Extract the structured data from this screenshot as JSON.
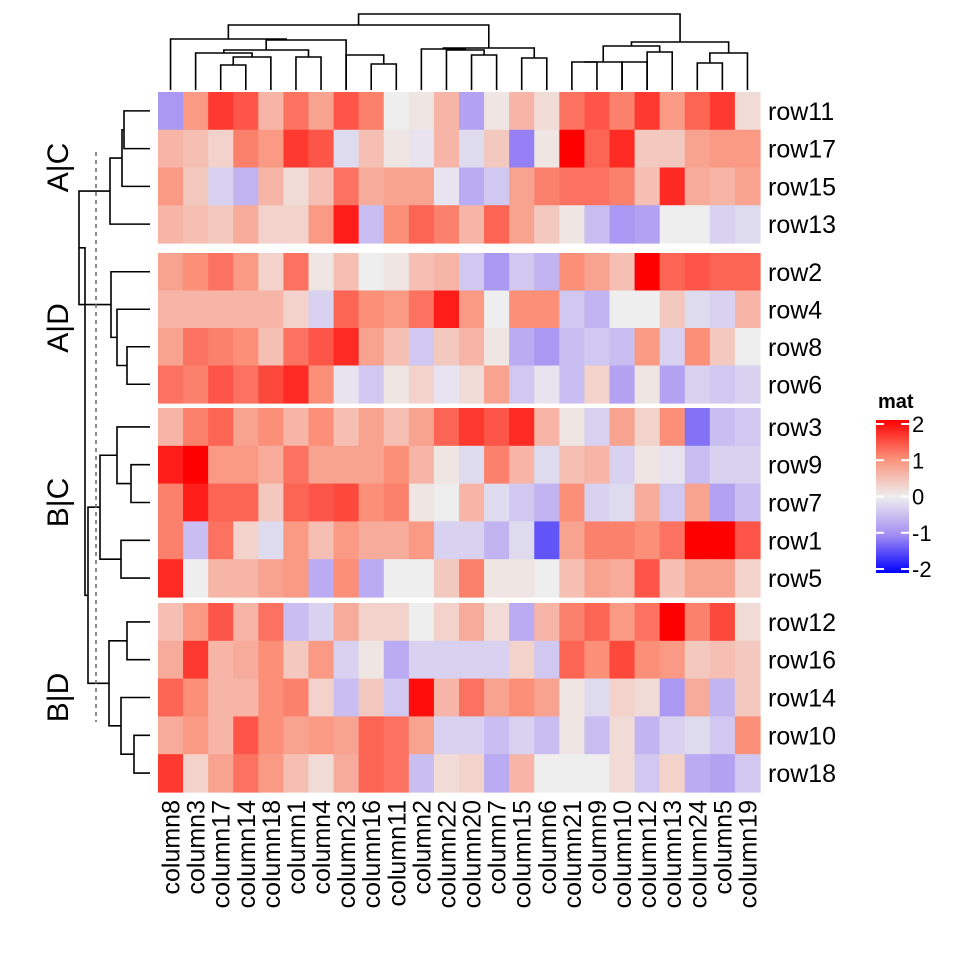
{
  "chart_data": {
    "type": "heatmap",
    "title": "",
    "legend": {
      "title": "mat",
      "ticks": [
        2,
        1,
        0,
        -1,
        -2
      ],
      "range": [
        -2,
        2
      ],
      "colors": {
        "low": "#0000ff",
        "mid": "#eeeeee",
        "high": "#ff0000"
      },
      "placement": "right"
    },
    "columns": [
      "column8",
      "column3",
      "column17",
      "column14",
      "column18",
      "column1",
      "column4",
      "column23",
      "column16",
      "column11",
      "column2",
      "column22",
      "column20",
      "column7",
      "column15",
      "column6",
      "column21",
      "column9",
      "column10",
      "column12",
      "column13",
      "column24",
      "column5",
      "column19"
    ],
    "slices": [
      {
        "label": "A|C",
        "rows": [
          "row11",
          "row17",
          "row15",
          "row13"
        ]
      },
      {
        "label": "A|D",
        "rows": [
          "row2",
          "row4",
          "row8",
          "row6"
        ]
      },
      {
        "label": "B|C",
        "rows": [
          "row3",
          "row9",
          "row7",
          "row1",
          "row5"
        ]
      },
      {
        "label": "B|D",
        "rows": [
          "row12",
          "row16",
          "row14",
          "row10",
          "row18"
        ]
      }
    ],
    "values": {
      "row11": [
        -0.9,
        0.9,
        1.6,
        1.4,
        0.6,
        1.2,
        0.8,
        1.4,
        1.1,
        0.0,
        0.1,
        0.6,
        -0.8,
        0.1,
        0.6,
        0.2,
        1.2,
        1.4,
        1.1,
        1.6,
        0.9,
        1.3,
        1.6,
        0.2
      ],
      "row17": [
        0.6,
        0.5,
        0.3,
        1.1,
        0.9,
        1.6,
        1.4,
        -0.2,
        0.5,
        0.1,
        -0.1,
        0.6,
        -0.2,
        0.4,
        -1.1,
        0.1,
        2.0,
        1.3,
        1.7,
        0.4,
        0.4,
        0.8,
        0.9,
        0.9
      ],
      "row15": [
        0.9,
        0.4,
        -0.3,
        -0.6,
        0.6,
        0.2,
        0.5,
        1.2,
        0.7,
        0.8,
        0.8,
        -0.1,
        -0.7,
        -0.4,
        0.8,
        1.1,
        1.2,
        1.2,
        1.1,
        0.5,
        1.7,
        0.7,
        0.6,
        0.8
      ],
      "row13": [
        0.6,
        0.5,
        0.4,
        0.7,
        0.3,
        0.3,
        0.9,
        1.8,
        -0.5,
        1.0,
        1.3,
        1.1,
        0.6,
        1.3,
        0.8,
        0.4,
        0.1,
        -0.5,
        -0.9,
        -0.8,
        0.0,
        0.0,
        -0.3,
        -0.2
      ],
      "row2": [
        0.8,
        1.0,
        1.2,
        0.9,
        0.3,
        1.2,
        0.1,
        0.5,
        0.0,
        0.1,
        0.5,
        0.6,
        -0.4,
        -0.9,
        -0.4,
        -0.6,
        1.0,
        0.8,
        0.5,
        2.0,
        1.3,
        1.4,
        1.3,
        1.3
      ],
      "row4": [
        0.6,
        0.6,
        0.6,
        0.6,
        0.6,
        0.3,
        -0.3,
        1.3,
        1.0,
        0.9,
        1.2,
        1.8,
        0.9,
        0.0,
        1.0,
        1.0,
        -0.4,
        -0.6,
        0.0,
        0.0,
        0.4,
        -0.2,
        -0.3,
        0.6
      ],
      "row8": [
        0.8,
        1.2,
        1.1,
        1.0,
        0.5,
        1.2,
        1.4,
        1.7,
        0.8,
        0.5,
        -0.4,
        0.4,
        0.6,
        0.1,
        -0.7,
        -0.9,
        -0.5,
        -0.4,
        -0.5,
        0.9,
        -0.3,
        1.0,
        0.4,
        0.0
      ],
      "row6": [
        1.2,
        1.1,
        1.4,
        1.2,
        1.5,
        1.7,
        1.0,
        -0.1,
        -0.4,
        0.1,
        0.3,
        -0.1,
        0.2,
        0.8,
        -0.4,
        -0.1,
        -0.5,
        0.3,
        -0.8,
        0.1,
        -0.8,
        -0.3,
        -0.4,
        -0.3
      ],
      "row3": [
        0.6,
        1.1,
        1.3,
        0.8,
        1.0,
        0.6,
        1.0,
        0.5,
        0.8,
        0.5,
        0.8,
        1.3,
        1.6,
        1.4,
        1.7,
        0.6,
        0.1,
        -0.3,
        0.8,
        0.3,
        1.0,
        -1.2,
        -0.5,
        -0.4
      ],
      "row9": [
        1.8,
        2.0,
        0.9,
        0.9,
        0.7,
        1.2,
        0.8,
        0.8,
        0.8,
        1.0,
        0.6,
        0.1,
        -0.2,
        1.1,
        0.6,
        -0.2,
        0.5,
        0.6,
        -0.3,
        0.1,
        -0.1,
        -0.5,
        -0.3,
        -0.3
      ],
      "row7": [
        1.1,
        1.8,
        1.3,
        1.3,
        0.4,
        1.3,
        1.4,
        1.5,
        1.0,
        1.1,
        0.1,
        0.0,
        0.6,
        -0.2,
        -0.4,
        -0.6,
        1.0,
        -0.3,
        -0.2,
        0.7,
        -0.4,
        0.8,
        -0.8,
        -0.5
      ],
      "row1": [
        1.1,
        -0.5,
        1.2,
        0.3,
        -0.2,
        0.9,
        0.5,
        0.9,
        0.7,
        0.7,
        0.9,
        -0.3,
        -0.3,
        -0.6,
        -0.2,
        -1.4,
        0.8,
        1.1,
        1.1,
        1.0,
        1.2,
        2.0,
        2.0,
        1.4
      ],
      "row5": [
        1.7,
        0.0,
        0.6,
        0.6,
        0.8,
        0.9,
        -0.7,
        1.0,
        -0.7,
        0.0,
        0.0,
        0.4,
        1.1,
        0.1,
        0.1,
        0.0,
        0.5,
        0.8,
        0.7,
        1.4,
        0.5,
        0.8,
        0.8,
        0.3
      ],
      "row12": [
        0.5,
        0.9,
        1.4,
        0.6,
        1.2,
        -0.5,
        -0.3,
        0.7,
        0.3,
        0.3,
        0.0,
        0.3,
        0.7,
        0.2,
        -0.7,
        0.6,
        1.1,
        1.3,
        0.9,
        1.2,
        2.0,
        1.1,
        1.5,
        0.2
      ],
      "row16": [
        0.7,
        1.6,
        0.6,
        0.7,
        1.0,
        0.4,
        0.9,
        -0.3,
        0.1,
        -0.7,
        -0.3,
        -0.3,
        -0.3,
        -0.3,
        0.3,
        -0.4,
        1.3,
        1.0,
        1.5,
        1.0,
        0.9,
        0.4,
        0.5,
        0.4
      ],
      "row14": [
        1.3,
        1.0,
        0.6,
        0.6,
        1.0,
        1.1,
        0.3,
        -0.5,
        0.4,
        -0.4,
        1.9,
        0.6,
        1.2,
        0.8,
        1.0,
        0.8,
        0.1,
        -0.2,
        0.3,
        0.2,
        -0.9,
        0.7,
        -0.6,
        0.4
      ],
      "row10": [
        0.7,
        0.9,
        0.6,
        1.4,
        1.0,
        0.8,
        0.9,
        0.8,
        1.3,
        1.2,
        0.8,
        -0.3,
        -0.3,
        -0.5,
        -0.3,
        -0.5,
        0.1,
        -0.5,
        0.2,
        -0.6,
        -0.3,
        -0.2,
        -0.4,
        1.0
      ],
      "row18": [
        1.6,
        0.3,
        0.8,
        1.2,
        0.9,
        0.5,
        0.2,
        0.7,
        1.3,
        1.2,
        -0.5,
        0.2,
        0.3,
        -0.7,
        0.6,
        0.0,
        0.0,
        0.0,
        0.2,
        -0.4,
        0.3,
        -0.7,
        -0.8,
        -0.4
      ]
    },
    "column_dendrogram": true,
    "row_dendrogram": true
  }
}
